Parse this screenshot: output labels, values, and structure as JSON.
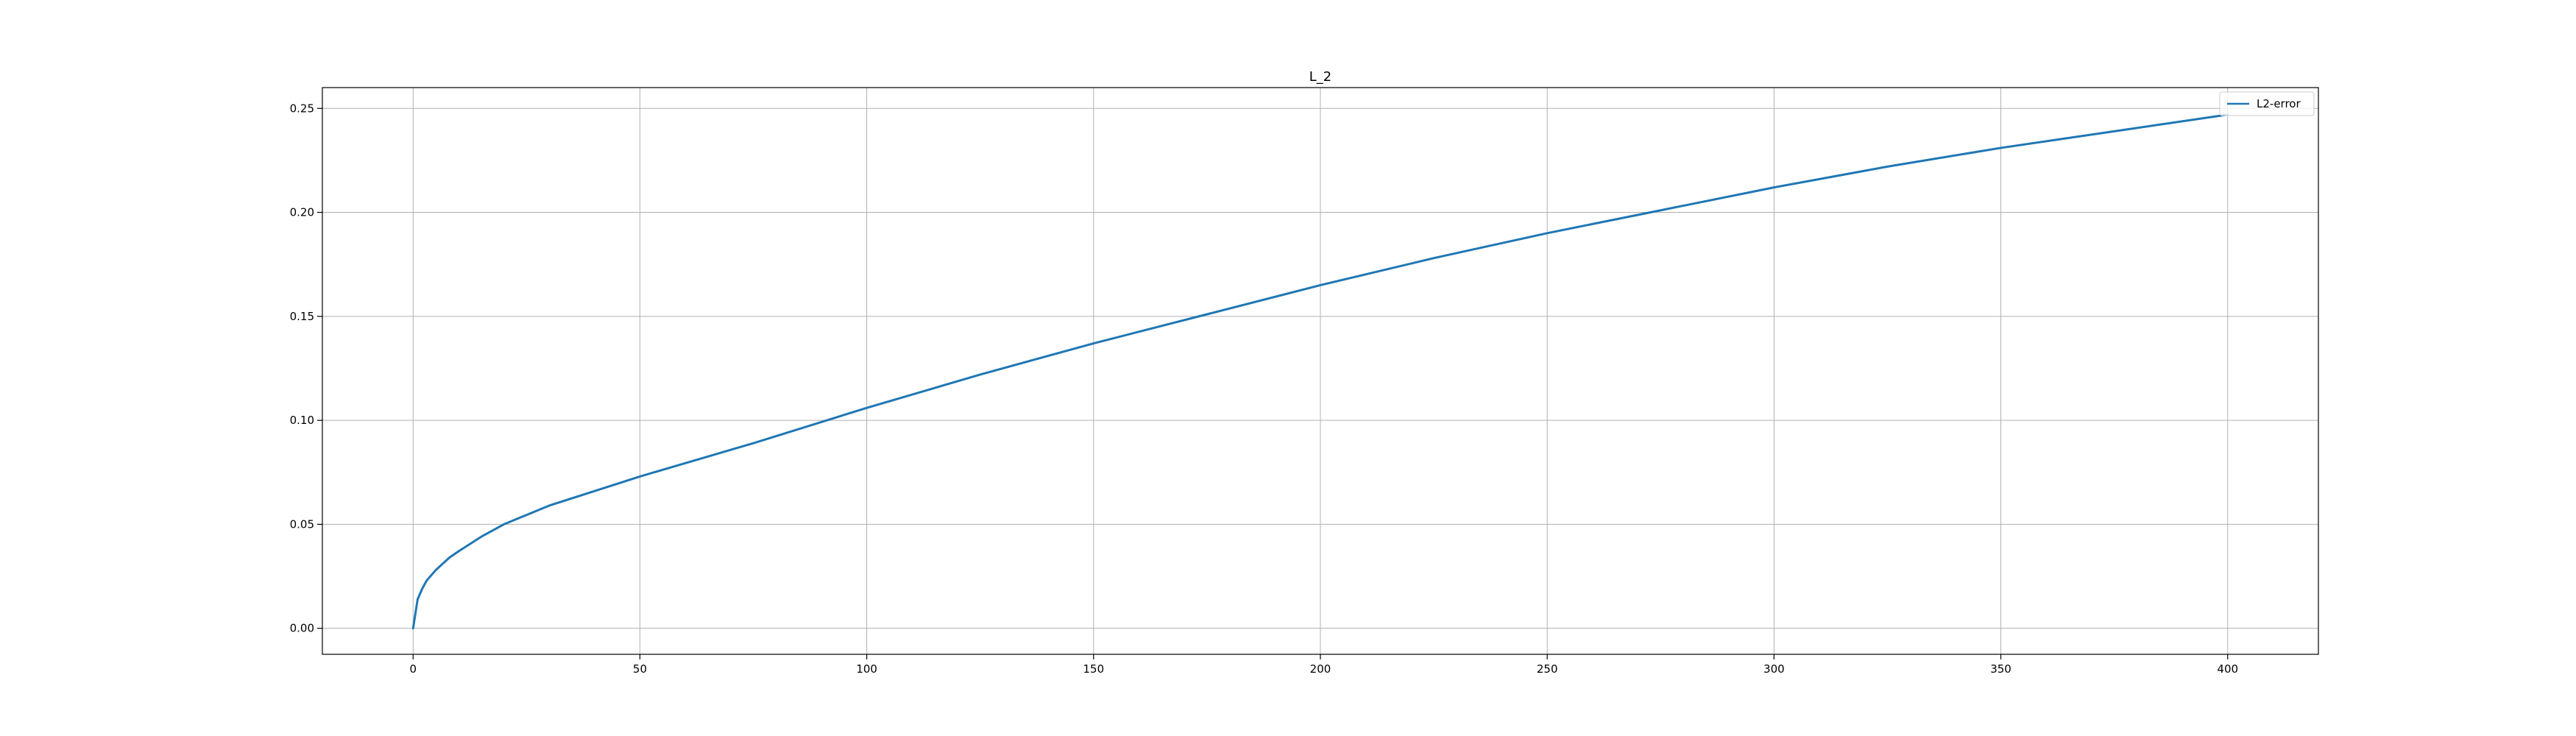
{
  "chart_data": {
    "type": "line",
    "title": "L_2",
    "xlabel": "",
    "ylabel": "",
    "xlim": [
      -20,
      420
    ],
    "ylim": [
      -0.0125,
      0.26
    ],
    "grid": true,
    "legend_position": "top-right",
    "x_ticks": [
      0,
      50,
      100,
      150,
      200,
      250,
      300,
      350,
      400
    ],
    "x_tick_labels": [
      "0",
      "50",
      "100",
      "150",
      "200",
      "250",
      "300",
      "350",
      "400"
    ],
    "y_ticks": [
      0.0,
      0.05,
      0.1,
      0.15,
      0.2,
      0.25
    ],
    "y_tick_labels": [
      "0.00",
      "0.05",
      "0.10",
      "0.15",
      "0.20",
      "0.25"
    ],
    "series": [
      {
        "name": "L2-error",
        "color": "#1f77b4",
        "x": [
          0,
          1,
          2,
          3,
          5,
          8,
          10,
          15,
          20,
          30,
          40,
          50,
          75,
          100,
          125,
          150,
          175,
          200,
          225,
          250,
          275,
          300,
          325,
          350,
          375,
          400
        ],
        "y": [
          0.0,
          0.014,
          0.019,
          0.023,
          0.028,
          0.034,
          0.037,
          0.044,
          0.05,
          0.059,
          0.066,
          0.073,
          0.089,
          0.106,
          0.122,
          0.137,
          0.151,
          0.165,
          0.178,
          0.19,
          0.201,
          0.212,
          0.222,
          0.231,
          0.239,
          0.247
        ]
      }
    ]
  }
}
